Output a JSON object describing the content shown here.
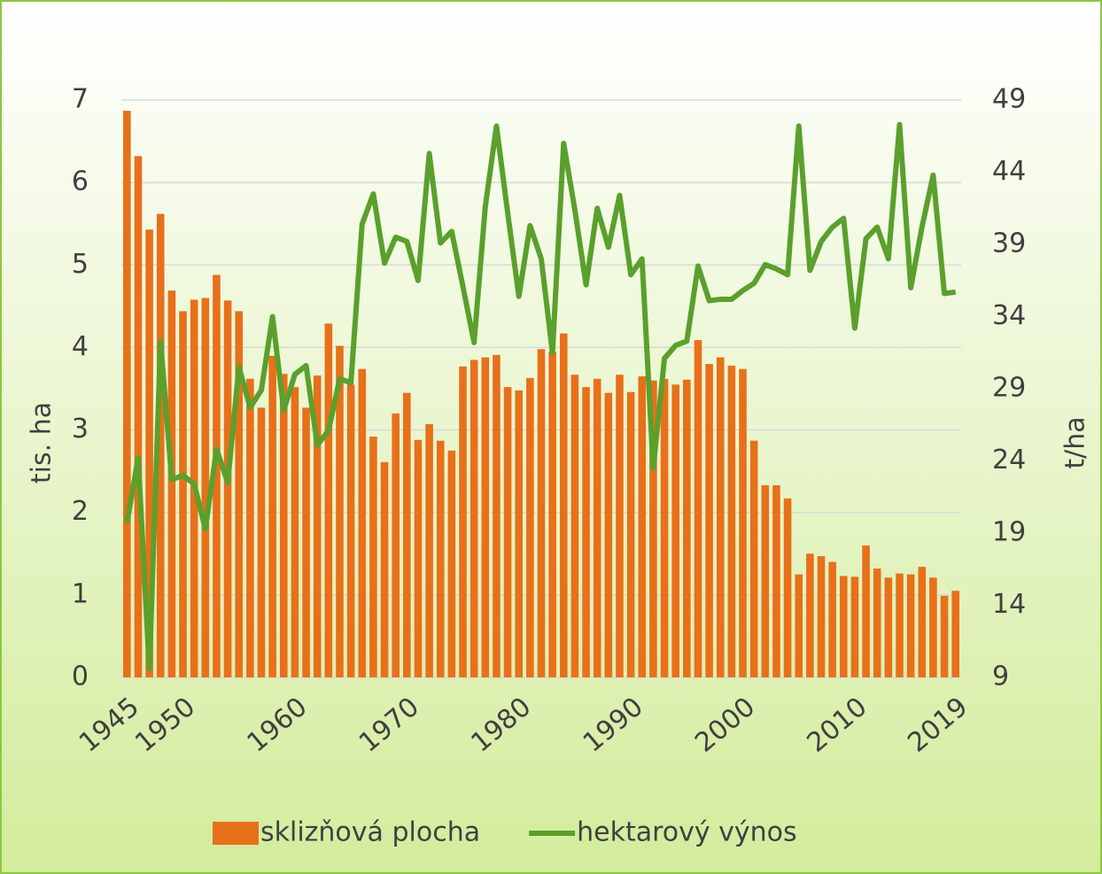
{
  "chart_data": {
    "type": "bar+line",
    "y_label": "tis. ha",
    "y2_label": "t/ha",
    "x": [
      1945,
      1946,
      1947,
      1948,
      1949,
      1950,
      1951,
      1952,
      1953,
      1954,
      1955,
      1956,
      1957,
      1958,
      1959,
      1960,
      1961,
      1962,
      1963,
      1964,
      1965,
      1966,
      1967,
      1968,
      1969,
      1970,
      1971,
      1972,
      1973,
      1974,
      1975,
      1976,
      1977,
      1978,
      1979,
      1980,
      1981,
      1982,
      1983,
      1984,
      1985,
      1986,
      1987,
      1988,
      1989,
      1990,
      1991,
      1992,
      1993,
      1994,
      1995,
      1996,
      1997,
      1998,
      1999,
      2000,
      2001,
      2002,
      2003,
      2004,
      2005,
      2006,
      2007,
      2008,
      2009,
      2010,
      2011,
      2012,
      2013,
      2014,
      2015,
      2016,
      2017,
      2018,
      2019
    ],
    "xlim": [
      1944.5,
      2019.5
    ],
    "xticks": [
      1945,
      1950,
      1960,
      1970,
      1980,
      1990,
      2000,
      2010,
      2019
    ],
    "ylim": [
      0,
      7
    ],
    "yticks": [
      0,
      1,
      2,
      3,
      4,
      5,
      6,
      7
    ],
    "y2lim": [
      9,
      49
    ],
    "y2ticks": [
      9,
      14,
      19,
      24,
      29,
      34,
      39,
      44,
      49
    ],
    "grid": true,
    "legend": "bottom",
    "series": [
      {
        "name": "sklizňová plocha",
        "type": "bar",
        "color": "#e8701a",
        "values": [
          6.87,
          6.32,
          5.43,
          5.62,
          4.69,
          4.44,
          4.58,
          4.6,
          4.88,
          4.57,
          4.44,
          3.62,
          3.27,
          3.9,
          3.68,
          3.52,
          3.27,
          3.66,
          4.29,
          4.02,
          3.55,
          3.74,
          2.92,
          2.61,
          3.2,
          3.45,
          2.88,
          3.07,
          2.87,
          2.75,
          3.77,
          3.85,
          3.88,
          3.91,
          3.52,
          3.48,
          3.63,
          3.98,
          3.95,
          4.17,
          3.67,
          3.52,
          3.62,
          3.45,
          3.67,
          3.46,
          3.65,
          3.6,
          3.62,
          3.55,
          3.61,
          4.09,
          3.8,
          3.88,
          3.78,
          3.74,
          2.87,
          2.33,
          2.33,
          2.17,
          1.25,
          1.5,
          1.47,
          1.4,
          1.23,
          1.22,
          1.6,
          1.32,
          1.21,
          1.26,
          1.25,
          1.34,
          1.21,
          0.99,
          1.05
        ]
      },
      {
        "name": "hektarový výnos",
        "type": "line",
        "color": "#5aa02c",
        "axis": "y2",
        "values": [
          19.7,
          24.2,
          9.6,
          32.3,
          22.7,
          23.0,
          22.4,
          19.3,
          24.8,
          22.5,
          30.5,
          27.7,
          28.9,
          34.0,
          27.5,
          30.0,
          30.6,
          25.1,
          26.1,
          29.7,
          29.4,
          40.4,
          42.5,
          37.7,
          39.5,
          39.2,
          36.5,
          45.3,
          39.1,
          39.9,
          36.1,
          32.2,
          41.6,
          47.2,
          41.2,
          35.4,
          40.3,
          38.0,
          31.5,
          46.0,
          41.4,
          36.2,
          41.5,
          38.8,
          42.4,
          36.9,
          38.0,
          23.5,
          31.1,
          32.0,
          32.3,
          37.5,
          35.1,
          35.2,
          35.2,
          35.8,
          36.3,
          37.6,
          37.3,
          36.9,
          47.2,
          37.2,
          39.2,
          40.2,
          40.8,
          33.2,
          39.4,
          40.2,
          38.0,
          47.3,
          36.0,
          40.2,
          43.8,
          35.6,
          35.7
        ]
      }
    ]
  }
}
